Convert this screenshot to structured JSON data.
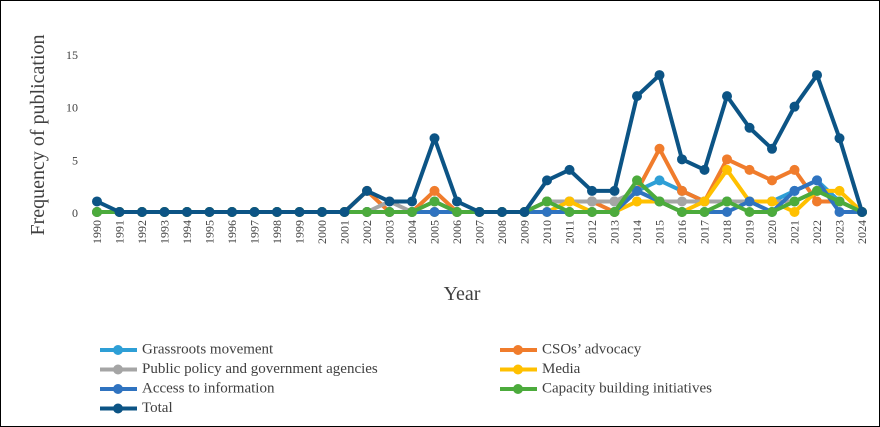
{
  "chart_data": {
    "type": "line",
    "xlabel": "Year",
    "ylabel": "Frequency of publication",
    "categories": [
      "1990",
      "1991",
      "1992",
      "1993",
      "1994",
      "1995",
      "1996",
      "1997",
      "1998",
      "1999",
      "2000",
      "2001",
      "2002",
      "2003",
      "2004",
      "2005",
      "2006",
      "2007",
      "2008",
      "2009",
      "2010",
      "2011",
      "2012",
      "2013",
      "2014",
      "2015",
      "2016",
      "2017",
      "2018",
      "2019",
      "2020",
      "2021",
      "2022",
      "2023",
      "2024"
    ],
    "ylim": [
      0,
      15
    ],
    "yticks": [
      0,
      5,
      10,
      15
    ],
    "grid": false,
    "legend": "bottom",
    "series": [
      {
        "name": "Grassroots movement",
        "color": "#2e9fd6",
        "values": [
          0,
          0,
          0,
          0,
          0,
          0,
          0,
          0,
          0,
          0,
          0,
          0,
          0,
          0,
          0,
          0,
          0,
          0,
          0,
          0,
          1,
          1,
          1,
          1,
          2,
          3,
          2,
          1,
          1,
          1,
          1,
          2,
          3,
          1,
          0
        ]
      },
      {
        "name": "CSOs’ advocacy",
        "color": "#f07c2c",
        "values": [
          0,
          0,
          0,
          0,
          0,
          0,
          0,
          0,
          0,
          0,
          0,
          0,
          2,
          0,
          0,
          2,
          0,
          0,
          0,
          0,
          1,
          1,
          1,
          0,
          2,
          6,
          2,
          1,
          5,
          4,
          3,
          4,
          1,
          1,
          0
        ]
      },
      {
        "name": "Public policy and government agencies",
        "color": "#a5a5a5",
        "values": [
          0,
          0,
          0,
          0,
          0,
          0,
          0,
          0,
          0,
          0,
          0,
          0,
          0,
          1,
          0,
          1,
          0,
          0,
          0,
          0,
          1,
          1,
          1,
          1,
          2,
          1,
          1,
          1,
          1,
          1,
          1,
          1,
          2,
          1,
          0
        ]
      },
      {
        "name": "Media",
        "color": "#ffc000",
        "values": [
          0,
          0,
          0,
          0,
          0,
          0,
          0,
          0,
          0,
          0,
          0,
          0,
          0,
          0,
          0,
          0,
          0,
          0,
          0,
          0,
          0,
          1,
          0,
          0,
          1,
          1,
          0,
          1,
          4,
          1,
          1,
          0,
          2,
          2,
          0
        ]
      },
      {
        "name": "Access to information",
        "color": "#2f73c0",
        "values": [
          0,
          0,
          0,
          0,
          0,
          0,
          0,
          0,
          0,
          0,
          0,
          0,
          0,
          0,
          0,
          0,
          0,
          0,
          0,
          0,
          0,
          0,
          0,
          0,
          2,
          1,
          0,
          0,
          0,
          1,
          0,
          2,
          3,
          0,
          0
        ]
      },
      {
        "name": "Capacity building initiatives",
        "color": "#4cab3c",
        "values": [
          0,
          0,
          0,
          0,
          0,
          0,
          0,
          0,
          0,
          0,
          0,
          0,
          0,
          0,
          0,
          1,
          0,
          0,
          0,
          0,
          1,
          0,
          0,
          0,
          3,
          1,
          0,
          0,
          1,
          0,
          0,
          1,
          2,
          1,
          0
        ]
      },
      {
        "name": "Total",
        "color": "#0c5485",
        "values": [
          1,
          0,
          0,
          0,
          0,
          0,
          0,
          0,
          0,
          0,
          0,
          0,
          2,
          1,
          1,
          7,
          1,
          0,
          0,
          0,
          3,
          4,
          2,
          2,
          11,
          13,
          5,
          4,
          11,
          8,
          6,
          10,
          13,
          7,
          0
        ]
      }
    ]
  }
}
